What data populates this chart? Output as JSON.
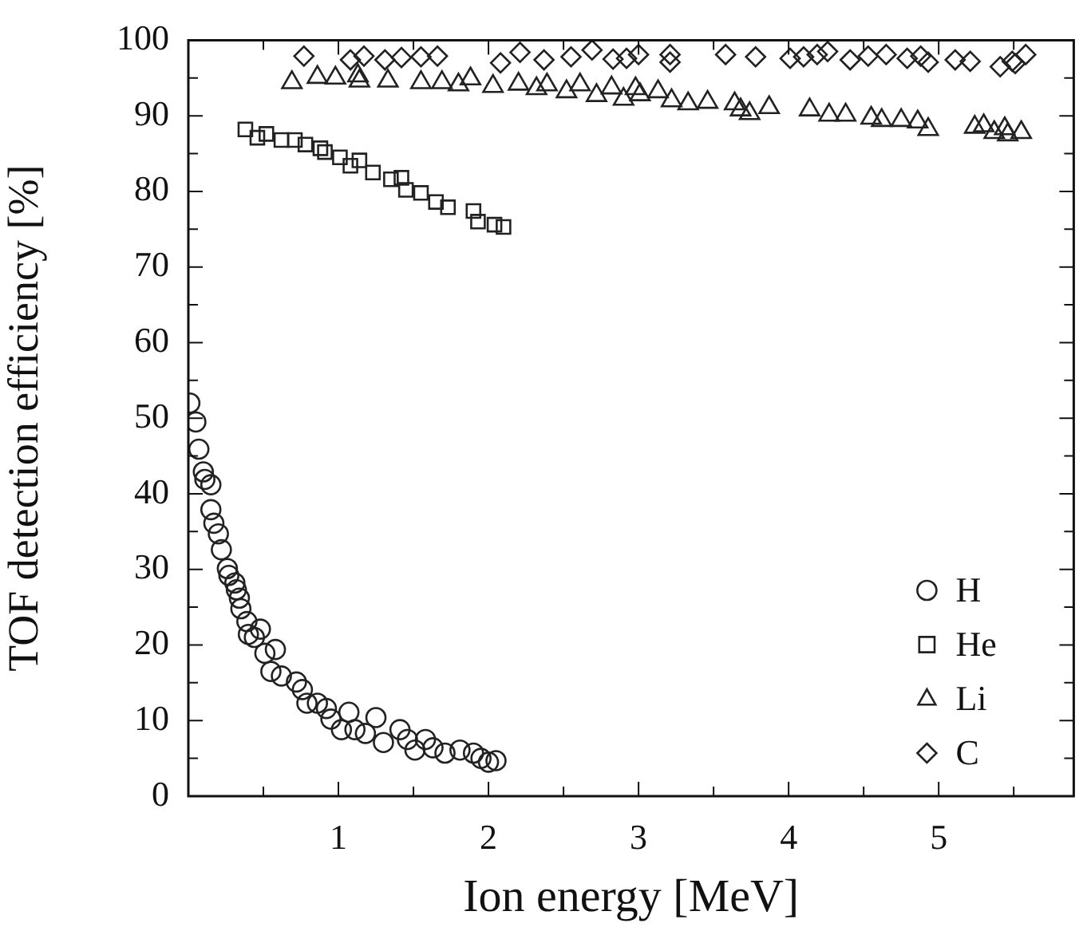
{
  "chart_data": {
    "type": "scatter",
    "xlabel": "Ion energy [MeV]",
    "ylabel": "TOF detection efficiency [%]",
    "xlim": [
      0,
      5.9
    ],
    "xticks": [
      {
        "value": 0.5,
        "label": null
      },
      1,
      {
        "value": 1.5,
        "label": null
      },
      2,
      {
        "value": 2.5,
        "label": null
      },
      3,
      {
        "value": 3.5,
        "label": null
      },
      4,
      {
        "value": 4.5,
        "label": null
      },
      5,
      {
        "value": 5.5,
        "label": null
      }
    ],
    "ylim": [
      0,
      100
    ],
    "yticks": [
      0,
      {
        "value": 5,
        "label": null
      },
      10,
      {
        "value": 15,
        "label": null
      },
      20,
      {
        "value": 25,
        "label": null
      },
      30,
      {
        "value": 35,
        "label": null
      },
      40,
      {
        "value": 45,
        "label": null
      },
      50,
      {
        "value": 55,
        "label": null
      },
      60,
      {
        "value": 65,
        "label": null
      },
      70,
      {
        "value": 75,
        "label": null
      },
      80,
      {
        "value": 85,
        "label": null
      },
      90,
      {
        "value": 95,
        "label": null
      },
      100
    ],
    "grid": false,
    "legend": "bottom right",
    "series": [
      {
        "name": "H",
        "color": "#222222",
        "marker": "circle",
        "x": [
          0.01,
          0.05,
          0.07,
          0.1,
          0.11,
          0.15,
          0.15,
          0.17,
          0.2,
          0.22,
          0.26,
          0.27,
          0.31,
          0.32,
          0.34,
          0.35,
          0.39,
          0.4,
          0.44,
          0.48,
          0.51,
          0.58,
          0.55,
          0.62,
          0.72,
          0.76,
          0.79,
          0.86,
          0.92,
          0.95,
          1.02,
          1.07,
          1.11,
          1.18,
          1.25,
          1.3,
          1.41,
          1.46,
          1.51,
          1.58,
          1.63,
          1.71,
          1.81,
          1.9,
          1.95,
          2.0,
          2.05
        ],
        "values": [
          52.0,
          49.5,
          45.9,
          42.9,
          41.9,
          41.2,
          37.9,
          36.1,
          34.7,
          32.6,
          30.1,
          29.2,
          28.2,
          27.3,
          26.2,
          24.8,
          23.1,
          21.4,
          21.0,
          22.1,
          18.9,
          19.4,
          16.5,
          15.9,
          15.1,
          14.1,
          12.3,
          12.3,
          11.6,
          10.2,
          8.8,
          11.1,
          8.8,
          8.3,
          10.4,
          7.1,
          8.8,
          7.5,
          6.1,
          7.5,
          6.4,
          5.7,
          6.1,
          5.7,
          5.0,
          4.5,
          4.7
        ]
      },
      {
        "name": "He",
        "color": "#222222",
        "marker": "square",
        "x": [
          0.38,
          0.46,
          0.52,
          0.62,
          0.71,
          0.78,
          0.88,
          0.91,
          1.01,
          1.08,
          1.14,
          1.23,
          1.35,
          1.42,
          1.45,
          1.55,
          1.65,
          1.73,
          1.9,
          1.93,
          2.04,
          2.1
        ],
        "values": [
          88.2,
          87.1,
          87.6,
          86.8,
          86.8,
          86.2,
          85.7,
          85.2,
          84.5,
          83.4,
          84.1,
          82.5,
          81.6,
          81.8,
          80.2,
          79.8,
          78.6,
          77.9,
          77.4,
          76.0,
          75.6,
          75.3
        ]
      },
      {
        "name": "Li",
        "color": "#222222",
        "marker": "triangle",
        "x": [
          0.69,
          0.86,
          0.98,
          1.13,
          1.14,
          1.33,
          1.55,
          1.69,
          1.8,
          1.88,
          2.03,
          2.2,
          2.32,
          2.39,
          2.52,
          2.61,
          2.72,
          2.82,
          2.9,
          2.98,
          3.01,
          3.13,
          3.22,
          3.33,
          3.46,
          3.64,
          3.68,
          3.74,
          3.87,
          4.14,
          4.27,
          4.38,
          4.55,
          4.62,
          4.75,
          4.86,
          4.93,
          5.24,
          5.3,
          5.37,
          5.44,
          5.46,
          5.55
        ],
        "values": [
          94.4,
          95.1,
          95.0,
          95.3,
          94.6,
          94.6,
          94.4,
          94.4,
          94.1,
          94.9,
          93.9,
          94.2,
          93.6,
          94.1,
          93.2,
          94.1,
          92.7,
          93.7,
          92.2,
          93.6,
          92.8,
          93.2,
          92.0,
          91.6,
          91.8,
          91.6,
          90.8,
          90.3,
          91.1,
          90.8,
          90.1,
          90.1,
          89.7,
          89.4,
          89.4,
          89.2,
          88.2,
          88.5,
          88.7,
          87.8,
          88.3,
          87.5,
          87.8
        ]
      },
      {
        "name": "C",
        "color": "#222222",
        "marker": "diamond",
        "x": [
          0.77,
          1.08,
          1.17,
          1.31,
          1.42,
          1.55,
          1.66,
          2.08,
          2.21,
          2.37,
          2.55,
          2.69,
          2.83,
          2.92,
          3.0,
          3.21,
          3.21,
          3.58,
          3.78,
          4.01,
          4.1,
          4.19,
          4.26,
          4.41,
          4.53,
          4.65,
          4.79,
          4.88,
          4.93,
          5.11,
          5.21,
          5.41,
          5.49,
          5.51,
          5.58
        ],
        "values": [
          97.9,
          97.4,
          97.9,
          97.4,
          97.7,
          97.8,
          97.9,
          97.0,
          98.4,
          97.4,
          97.8,
          98.7,
          97.5,
          97.6,
          98.1,
          98.1,
          97.1,
          98.1,
          97.8,
          97.6,
          97.8,
          98.1,
          98.5,
          97.4,
          97.9,
          98.1,
          97.6,
          97.9,
          97.1,
          97.4,
          97.2,
          96.5,
          97.2,
          96.9,
          98.1
        ]
      }
    ]
  }
}
